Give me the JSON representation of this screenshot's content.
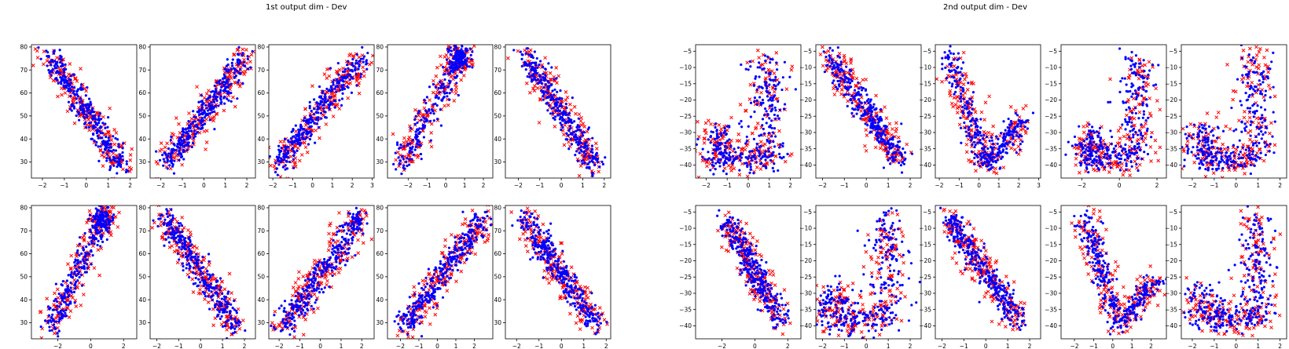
{
  "figure": {
    "titles": [
      "1st output dim - Dev",
      "2nd output dim - Dev"
    ],
    "marker_colors": {
      "red": "#ff0000",
      "blue": "#0000ff"
    },
    "red_marker": "x-icon",
    "blue_marker": "dot-icon"
  },
  "chart_data": [
    {
      "type": "scatter",
      "group": "1st output dim - Dev",
      "shape": "L",
      "xlim": [
        -2.5,
        2.3
      ],
      "ylim": [
        23,
        81
      ],
      "xticks": [
        -2,
        -1,
        0,
        1,
        2
      ],
      "yticks": [
        30,
        40,
        50,
        60,
        70,
        80
      ]
    },
    {
      "type": "scatter",
      "group": "1st output dim - Dev",
      "shape": "J",
      "xlim": [
        -2.5,
        2.4
      ],
      "ylim": [
        23,
        81
      ],
      "xticks": [
        -2,
        -1,
        0,
        1,
        2
      ],
      "yticks": [
        30,
        40,
        50,
        60,
        70,
        80
      ]
    },
    {
      "type": "scatter",
      "group": "1st output dim - Dev",
      "shape": "S",
      "xlim": [
        -2.2,
        3.1
      ],
      "ylim": [
        23,
        81
      ],
      "xticks": [
        -2,
        -1,
        0,
        1,
        2,
        3
      ],
      "yticks": [
        30,
        40,
        50,
        60,
        70,
        80
      ]
    },
    {
      "type": "scatter",
      "group": "1st output dim - Dev",
      "shape": "C",
      "xlim": [
        -3.1,
        2.5
      ],
      "ylim": [
        23,
        81
      ],
      "xticks": [
        -2,
        -1,
        0,
        1,
        2
      ],
      "yticks": [
        30,
        40,
        50,
        60,
        70,
        80
      ]
    },
    {
      "type": "scatter",
      "group": "1st output dim - Dev",
      "shape": "L",
      "xlim": [
        -2.6,
        2.3
      ],
      "ylim": [
        23,
        81
      ],
      "xticks": [
        -2,
        -1,
        0,
        1,
        2
      ],
      "yticks": [
        30,
        40,
        50,
        60,
        70,
        80
      ]
    },
    {
      "type": "scatter",
      "group": "1st output dim - Dev",
      "shape": "C",
      "xlim": [
        -3.6,
        2.8
      ],
      "ylim": [
        23,
        81
      ],
      "xticks": [
        -2,
        0,
        2
      ],
      "yticks": [
        30,
        40,
        50,
        60,
        70,
        80
      ]
    },
    {
      "type": "scatter",
      "group": "1st output dim - Dev",
      "shape": "L",
      "xlim": [
        -2.3,
        2.5
      ],
      "ylim": [
        23,
        81
      ],
      "xticks": [
        -2,
        -1,
        0,
        1,
        2
      ],
      "yticks": [
        30,
        40,
        50,
        60,
        70,
        80
      ]
    },
    {
      "type": "scatter",
      "group": "1st output dim - Dev",
      "shape": "J",
      "xlim": [
        -2.5,
        2.6
      ],
      "ylim": [
        23,
        81
      ],
      "xticks": [
        -2,
        -1,
        0,
        1,
        2
      ],
      "yticks": [
        30,
        40,
        50,
        60,
        70,
        80
      ]
    },
    {
      "type": "scatter",
      "group": "1st output dim - Dev",
      "shape": "S",
      "xlim": [
        -2.7,
        3.0
      ],
      "ylim": [
        23,
        81
      ],
      "xticks": [
        -2,
        -1,
        0,
        1,
        2
      ],
      "yticks": [
        30,
        40,
        50,
        60,
        70,
        80
      ]
    },
    {
      "type": "scatter",
      "group": "1st output dim - Dev",
      "shape": "L",
      "xlim": [
        -2.5,
        2.2
      ],
      "ylim": [
        23,
        81
      ],
      "xticks": [
        -2,
        -1,
        0,
        1,
        2
      ],
      "yticks": [
        30,
        40,
        50,
        60,
        70,
        80
      ]
    },
    {
      "type": "scatter",
      "group": "2nd output dim - Dev",
      "shape": "U",
      "xlim": [
        -2.5,
        2.5
      ],
      "ylim": [
        -44,
        -3
      ],
      "xticks": [
        -2,
        -1,
        0,
        1,
        2
      ],
      "yticks": [
        -40,
        -35,
        -30,
        -25,
        -20,
        -15,
        -10,
        -5
      ]
    },
    {
      "type": "scatter",
      "group": "2nd output dim - Dev",
      "shape": "L",
      "xlim": [
        -2.3,
        2.5
      ],
      "ylim": [
        -44,
        -3
      ],
      "xticks": [
        -2,
        -1,
        0,
        1,
        2
      ],
      "yticks": [
        -40,
        -35,
        -30,
        -25,
        -20,
        -15,
        -10,
        -5
      ]
    },
    {
      "type": "scatter",
      "group": "2nd output dim - Dev",
      "shape": "V",
      "xlim": [
        -2.2,
        3.1
      ],
      "ylim": [
        -44,
        -3
      ],
      "xticks": [
        -2,
        -1,
        0,
        1,
        2,
        3
      ],
      "yticks": [
        -40,
        -35,
        -30,
        -25,
        -20,
        -15,
        -10,
        -5
      ]
    },
    {
      "type": "scatter",
      "group": "2nd output dim - Dev",
      "shape": "U",
      "xlim": [
        -3.1,
        2.5
      ],
      "ylim": [
        -44,
        -3
      ],
      "xticks": [
        -2,
        0,
        2
      ],
      "yticks": [
        -40,
        -35,
        -30,
        -25,
        -20,
        -15,
        -10,
        -5
      ]
    },
    {
      "type": "scatter",
      "group": "2nd output dim - Dev",
      "shape": "U",
      "xlim": [
        -2.5,
        2.3
      ],
      "ylim": [
        -44,
        -3
      ],
      "xticks": [
        -2,
        -1,
        0,
        1,
        2
      ],
      "yticks": [
        -40,
        -35,
        -30,
        -25,
        -20,
        -15,
        -10,
        -5
      ]
    },
    {
      "type": "scatter",
      "group": "2nd output dim - Dev",
      "shape": "L",
      "xlim": [
        -3.6,
        2.8
      ],
      "ylim": [
        -44,
        -3
      ],
      "xticks": [
        -2,
        0,
        2
      ],
      "yticks": [
        -40,
        -35,
        -30,
        -25,
        -20,
        -15,
        -10,
        -5
      ]
    },
    {
      "type": "scatter",
      "group": "2nd output dim - Dev",
      "shape": "U",
      "xlim": [
        -2.3,
        2.5
      ],
      "ylim": [
        -44,
        -3
      ],
      "xticks": [
        -2,
        -1,
        0,
        1,
        2
      ],
      "yticks": [
        -40,
        -35,
        -30,
        -25,
        -20,
        -15,
        -10,
        -5
      ]
    },
    {
      "type": "scatter",
      "group": "2nd output dim - Dev",
      "shape": "L",
      "xlim": [
        -2.3,
        2.5
      ],
      "ylim": [
        -44,
        -3
      ],
      "xticks": [
        -2,
        -1,
        0,
        1,
        2
      ],
      "yticks": [
        -40,
        -35,
        -30,
        -25,
        -20,
        -15,
        -10,
        -5
      ]
    },
    {
      "type": "scatter",
      "group": "2nd output dim - Dev",
      "shape": "V",
      "xlim": [
        -2.7,
        2.8
      ],
      "ylim": [
        -44,
        -3
      ],
      "xticks": [
        -2,
        -1,
        0,
        1,
        2
      ],
      "yticks": [
        -40,
        -35,
        -30,
        -25,
        -20,
        -15,
        -10,
        -5
      ]
    },
    {
      "type": "scatter",
      "group": "2nd output dim - Dev",
      "shape": "U",
      "xlim": [
        -2.5,
        2.3
      ],
      "ylim": [
        -44,
        -3
      ],
      "xticks": [
        -2,
        -1,
        0,
        1,
        2
      ],
      "yticks": [
        -40,
        -35,
        -30,
        -25,
        -20,
        -15,
        -10,
        -5
      ]
    }
  ]
}
